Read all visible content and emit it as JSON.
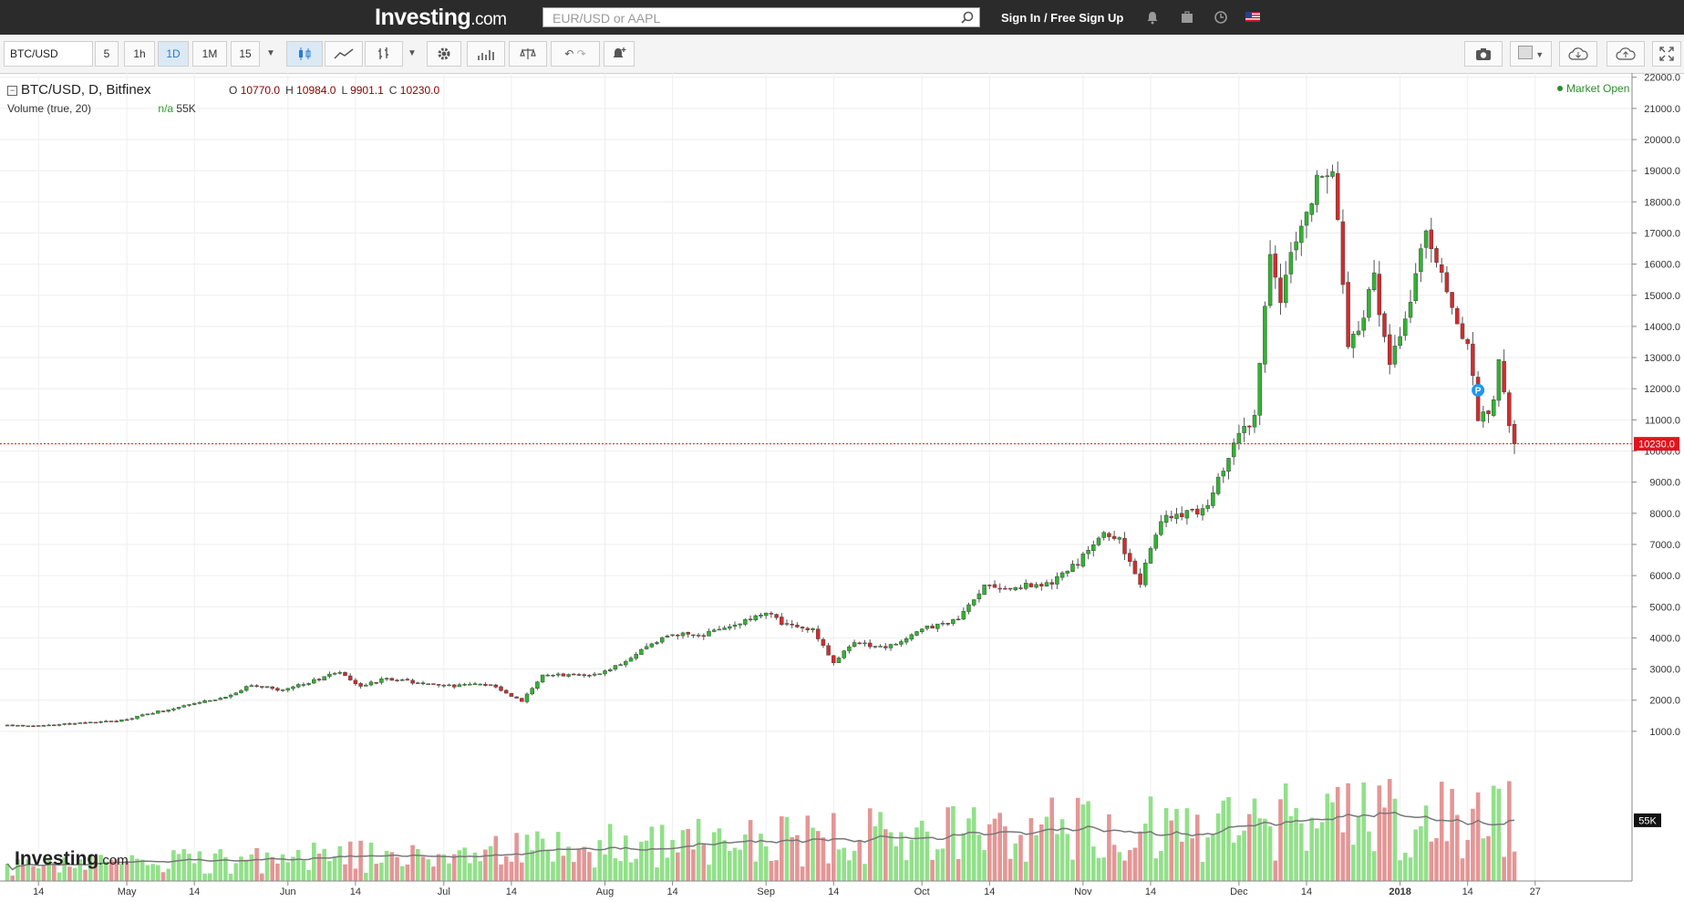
{
  "header": {
    "logo_main": "Investing",
    "logo_suffix": ".com",
    "search_placeholder": "EUR/USD or AAPL",
    "signin_label": "Sign In / Free Sign Up",
    "icons": [
      "bell-icon",
      "briefcase-icon",
      "clock-icon",
      "us-flag-icon"
    ]
  },
  "toolbar": {
    "symbol": "BTC/USD",
    "intervals": [
      "5",
      "1h",
      "1D",
      "1M",
      "15"
    ],
    "selected_interval": "1D"
  },
  "legend": {
    "title": "BTC/USD, D, Bitfinex",
    "o_label": "O",
    "o_value": "10770.0",
    "h_label": "H",
    "h_value": "10984.0",
    "l_label": "L",
    "l_value": "9901.1",
    "c_label": "C",
    "c_value": "10230.0",
    "volume_label": "Volume (true, 20)",
    "volume_na": "n/a",
    "volume_value": "55K"
  },
  "status": {
    "market": "Market Open"
  },
  "watermark": {
    "main": "Investing",
    "suffix": ".com"
  },
  "colors": {
    "up": "#2fb52f",
    "down": "#d42b2b",
    "vol_up": "#92e08a",
    "vol_down": "#e49696",
    "last_price": "#e0141e",
    "grid": "#eeeeee"
  },
  "chart_data": {
    "type": "candlestick",
    "title": "BTC/USD, D, Bitfinex",
    "xlabel": "",
    "ylabel": "",
    "ylim": [
      600,
      22000
    ],
    "y_ticks": [
      "22000.0",
      "21000.0",
      "20000.0",
      "19000.0",
      "18000.0",
      "17000.0",
      "16000.0",
      "15000.0",
      "14000.0",
      "13000.0",
      "12000.0",
      "11000.0",
      "10000.0",
      "9000.0",
      "8000.0",
      "7000.0",
      "6000.0",
      "5000.0",
      "4000.0",
      "3000.0",
      "2000.0",
      "1000.0"
    ],
    "x_ticks": [
      "14",
      "May",
      "14",
      "Jun",
      "14",
      "Jul",
      "14",
      "Aug",
      "14",
      "Sep",
      "14",
      "Oct",
      "14",
      "Nov",
      "14",
      "Dec",
      "14",
      "2018",
      "14",
      "27"
    ],
    "last_price": "10230.0",
    "volume_axis_label": "55K",
    "close_anchors": [
      [
        "2017-04-08",
        1200
      ],
      [
        "2017-04-14",
        1180
      ],
      [
        "2017-04-30",
        1350
      ],
      [
        "2017-05-10",
        1750
      ],
      [
        "2017-05-20",
        2100
      ],
      [
        "2017-05-25",
        2500
      ],
      [
        "2017-05-31",
        2300
      ],
      [
        "2017-06-11",
        2900
      ],
      [
        "2017-06-15",
        2450
      ],
      [
        "2017-06-20",
        2700
      ],
      [
        "2017-07-01",
        2450
      ],
      [
        "2017-07-10",
        2500
      ],
      [
        "2017-07-16",
        1950
      ],
      [
        "2017-07-20",
        2800
      ],
      [
        "2017-07-31",
        2850
      ],
      [
        "2017-08-05",
        3250
      ],
      [
        "2017-08-13",
        4100
      ],
      [
        "2017-08-20",
        4100
      ],
      [
        "2017-08-25",
        4400
      ],
      [
        "2017-09-01",
        4800
      ],
      [
        "2017-09-05",
        4400
      ],
      [
        "2017-09-10",
        4300
      ],
      [
        "2017-09-14",
        3200
      ],
      [
        "2017-09-18",
        3900
      ],
      [
        "2017-09-24",
        3650
      ],
      [
        "2017-10-01",
        4300
      ],
      [
        "2017-10-08",
        4600
      ],
      [
        "2017-10-13",
        5700
      ],
      [
        "2017-10-18",
        5600
      ],
      [
        "2017-10-26",
        5800
      ],
      [
        "2017-10-31",
        6400
      ],
      [
        "2017-11-05",
        7400
      ],
      [
        "2017-11-08",
        7100
      ],
      [
        "2017-11-12",
        5800
      ],
      [
        "2017-11-16",
        7800
      ],
      [
        "2017-11-25",
        8200
      ],
      [
        "2017-11-29",
        9900
      ],
      [
        "2017-12-04",
        11200
      ],
      [
        "2017-12-07",
        16500
      ],
      [
        "2017-12-09",
        14800
      ],
      [
        "2017-12-12",
        16800
      ],
      [
        "2017-12-17",
        19100
      ],
      [
        "2017-12-19",
        18800
      ],
      [
        "2017-12-21",
        15600
      ],
      [
        "2017-12-22",
        13500
      ],
      [
        "2017-12-24",
        13800
      ],
      [
        "2017-12-27",
        15600
      ],
      [
        "2017-12-30",
        12600
      ],
      [
        "2018-01-03",
        14900
      ],
      [
        "2018-01-06",
        17000
      ],
      [
        "2018-01-09",
        15500
      ],
      [
        "2018-01-12",
        13900
      ],
      [
        "2018-01-14",
        13600
      ],
      [
        "2018-01-16",
        11100
      ],
      [
        "2018-01-19",
        11500
      ],
      [
        "2018-01-20",
        12800
      ],
      [
        "2018-01-22",
        11000
      ],
      [
        "2018-01-23",
        10230
      ]
    ]
  }
}
